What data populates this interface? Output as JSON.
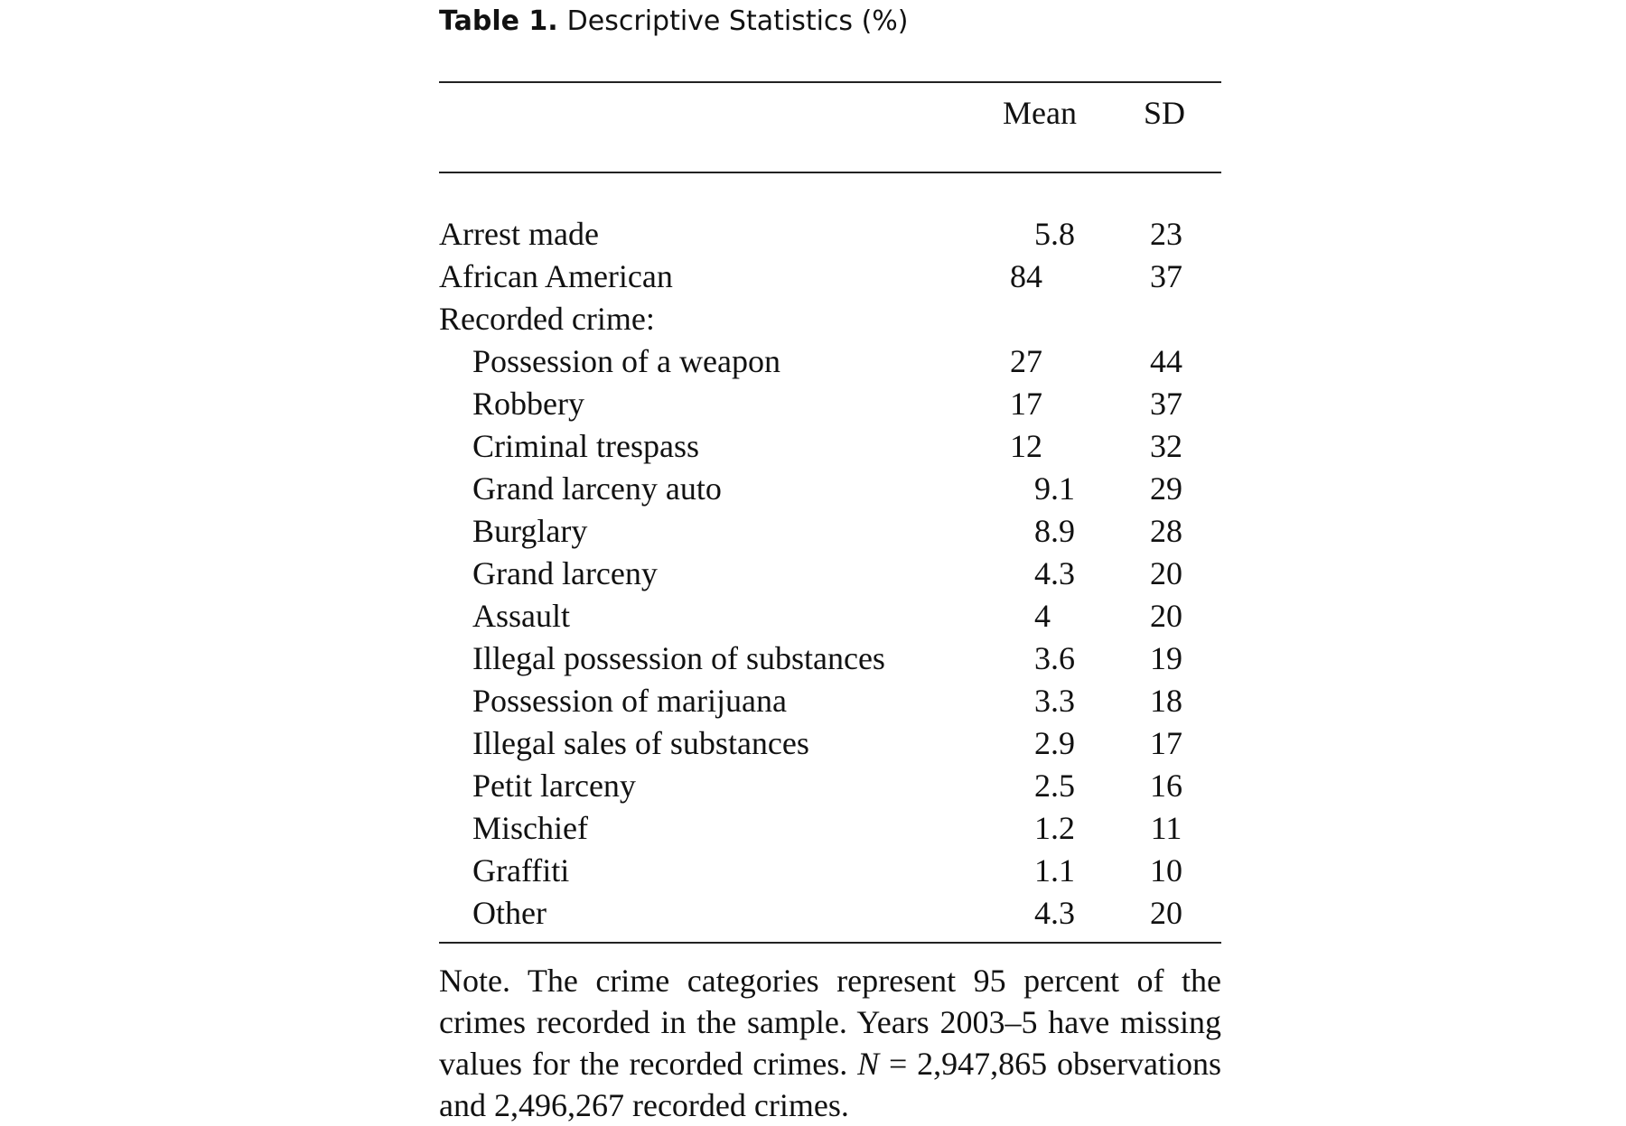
{
  "caption": {
    "label": "Table 1.",
    "title": "Descriptive Statistics (%)"
  },
  "columns": {
    "label": "",
    "mean": "Mean",
    "sd": "SD"
  },
  "rows": [
    {
      "label": "Arrest made",
      "mean": "5.8",
      "sd": "23"
    },
    {
      "label": "African American",
      "mean": "84",
      "sd": "37"
    },
    {
      "label": "Recorded crime:",
      "mean": "",
      "sd": ""
    },
    {
      "label": "Possession of a weapon",
      "mean": "27",
      "sd": "44"
    },
    {
      "label": "Robbery",
      "mean": "17",
      "sd": "37"
    },
    {
      "label": "Criminal trespass",
      "mean": "12",
      "sd": "32"
    },
    {
      "label": "Grand larceny auto",
      "mean": "9.1",
      "sd": "29"
    },
    {
      "label": "Burglary",
      "mean": "8.9",
      "sd": "28"
    },
    {
      "label": "Grand larceny",
      "mean": "4.3",
      "sd": "20"
    },
    {
      "label": "Assault",
      "mean": "4",
      "sd": "20"
    },
    {
      "label": "Illegal possession of substances",
      "mean": "3.6",
      "sd": "19"
    },
    {
      "label": "Possession of marijuana",
      "mean": "3.3",
      "sd": "18"
    },
    {
      "label": "Illegal sales of substances",
      "mean": "2.9",
      "sd": "17"
    },
    {
      "label": "Petit larceny",
      "mean": "2.5",
      "sd": "16"
    },
    {
      "label": "Mischief",
      "mean": "1.2",
      "sd": "11"
    },
    {
      "label": "Graffiti",
      "mean": "1.1",
      "sd": "10"
    },
    {
      "label": "Other",
      "mean": "4.3",
      "sd": "20"
    }
  ],
  "note": {
    "lead": "Note.",
    "text_a": "The crime categories represent 95 percent of the crimes recorded in the sample. Years 2003–5 have miss­ing values for the recorded crimes.",
    "n_symbol": "N",
    "text_b": "= 2,947,865 ob­servations and 2,496,267 recorded crimes."
  }
}
